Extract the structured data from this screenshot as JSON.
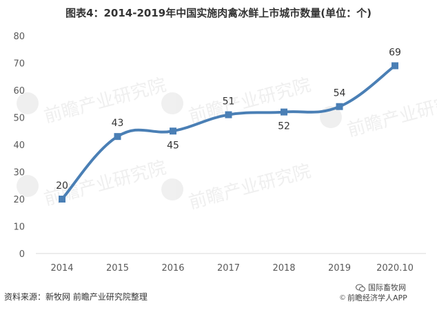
{
  "chart_data": {
    "type": "line",
    "title": "图表4：2014-2019年中国实施肉禽冰鲜上市城市数量(单位：个)",
    "categories": [
      "2014",
      "2015",
      "2016",
      "2017",
      "2018",
      "2019",
      "2020.10"
    ],
    "values": [
      20,
      43,
      45,
      51,
      52,
      54,
      69
    ],
    "ylim": [
      0,
      80
    ],
    "yticks": [
      0,
      10,
      20,
      30,
      40,
      50,
      60,
      70,
      80
    ],
    "line_color": "#4a7fb5",
    "grid": false,
    "legend": "none",
    "label_below": [
      false,
      false,
      true,
      false,
      true,
      false,
      false
    ]
  },
  "footer": {
    "source": "资料来源：新牧网  前瞻产业研究院整理",
    "brand_line1": "国际畜牧网",
    "brand_line2": "前瞻经济学人APP"
  },
  "watermark_text": "前瞻产业研究院"
}
